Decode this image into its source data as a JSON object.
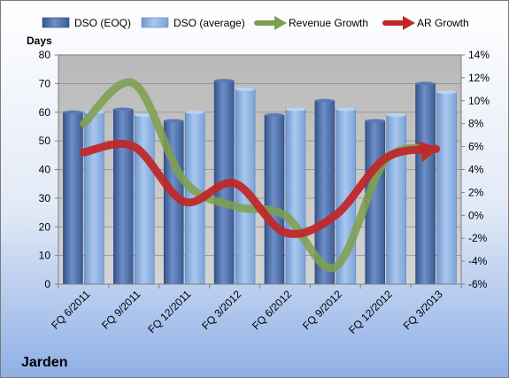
{
  "chart_data": {
    "type": "bar",
    "company": "Jarden",
    "ylabel_left": "Days",
    "categories": [
      "FQ 6/2011",
      "FQ 9/2011",
      "FQ 12/2011",
      "FQ 3/2012",
      "FQ 6/2012",
      "FQ 9/2012",
      "FQ 12/2012",
      "FQ 3/2013"
    ],
    "series": [
      {
        "name": "DSO (EOQ)",
        "kind": "bar",
        "axis": "left",
        "color": "#4f6fa8",
        "values": [
          60,
          61,
          57,
          71,
          59,
          64,
          57,
          70
        ]
      },
      {
        "name": "DSO (average)",
        "kind": "bar",
        "axis": "left",
        "color": "#8fb5e0",
        "values": [
          60,
          59,
          60,
          68,
          61,
          61,
          59,
          67
        ]
      },
      {
        "name": "Revenue Growth",
        "kind": "line",
        "axis": "right",
        "color": "#7f9f50",
        "values": [
          8.0,
          11.5,
          3.0,
          0.8,
          0.0,
          -4.5,
          4.8,
          5.8
        ]
      },
      {
        "name": "AR Growth",
        "kind": "line",
        "axis": "right",
        "color": "#c0282a",
        "values": [
          5.5,
          6.0,
          1.2,
          2.8,
          -1.5,
          0.0,
          5.0,
          5.8
        ]
      }
    ],
    "ylim_left": [
      0,
      80
    ],
    "yticks_left": [
      0,
      10,
      20,
      30,
      40,
      50,
      60,
      70,
      80
    ],
    "ylim_right": [
      -6,
      14
    ],
    "yticks_right": [
      -6,
      -4,
      -2,
      0,
      2,
      4,
      6,
      8,
      10,
      12,
      14
    ],
    "right_tick_suffix": "%",
    "grid": true,
    "legend_position": "top"
  }
}
